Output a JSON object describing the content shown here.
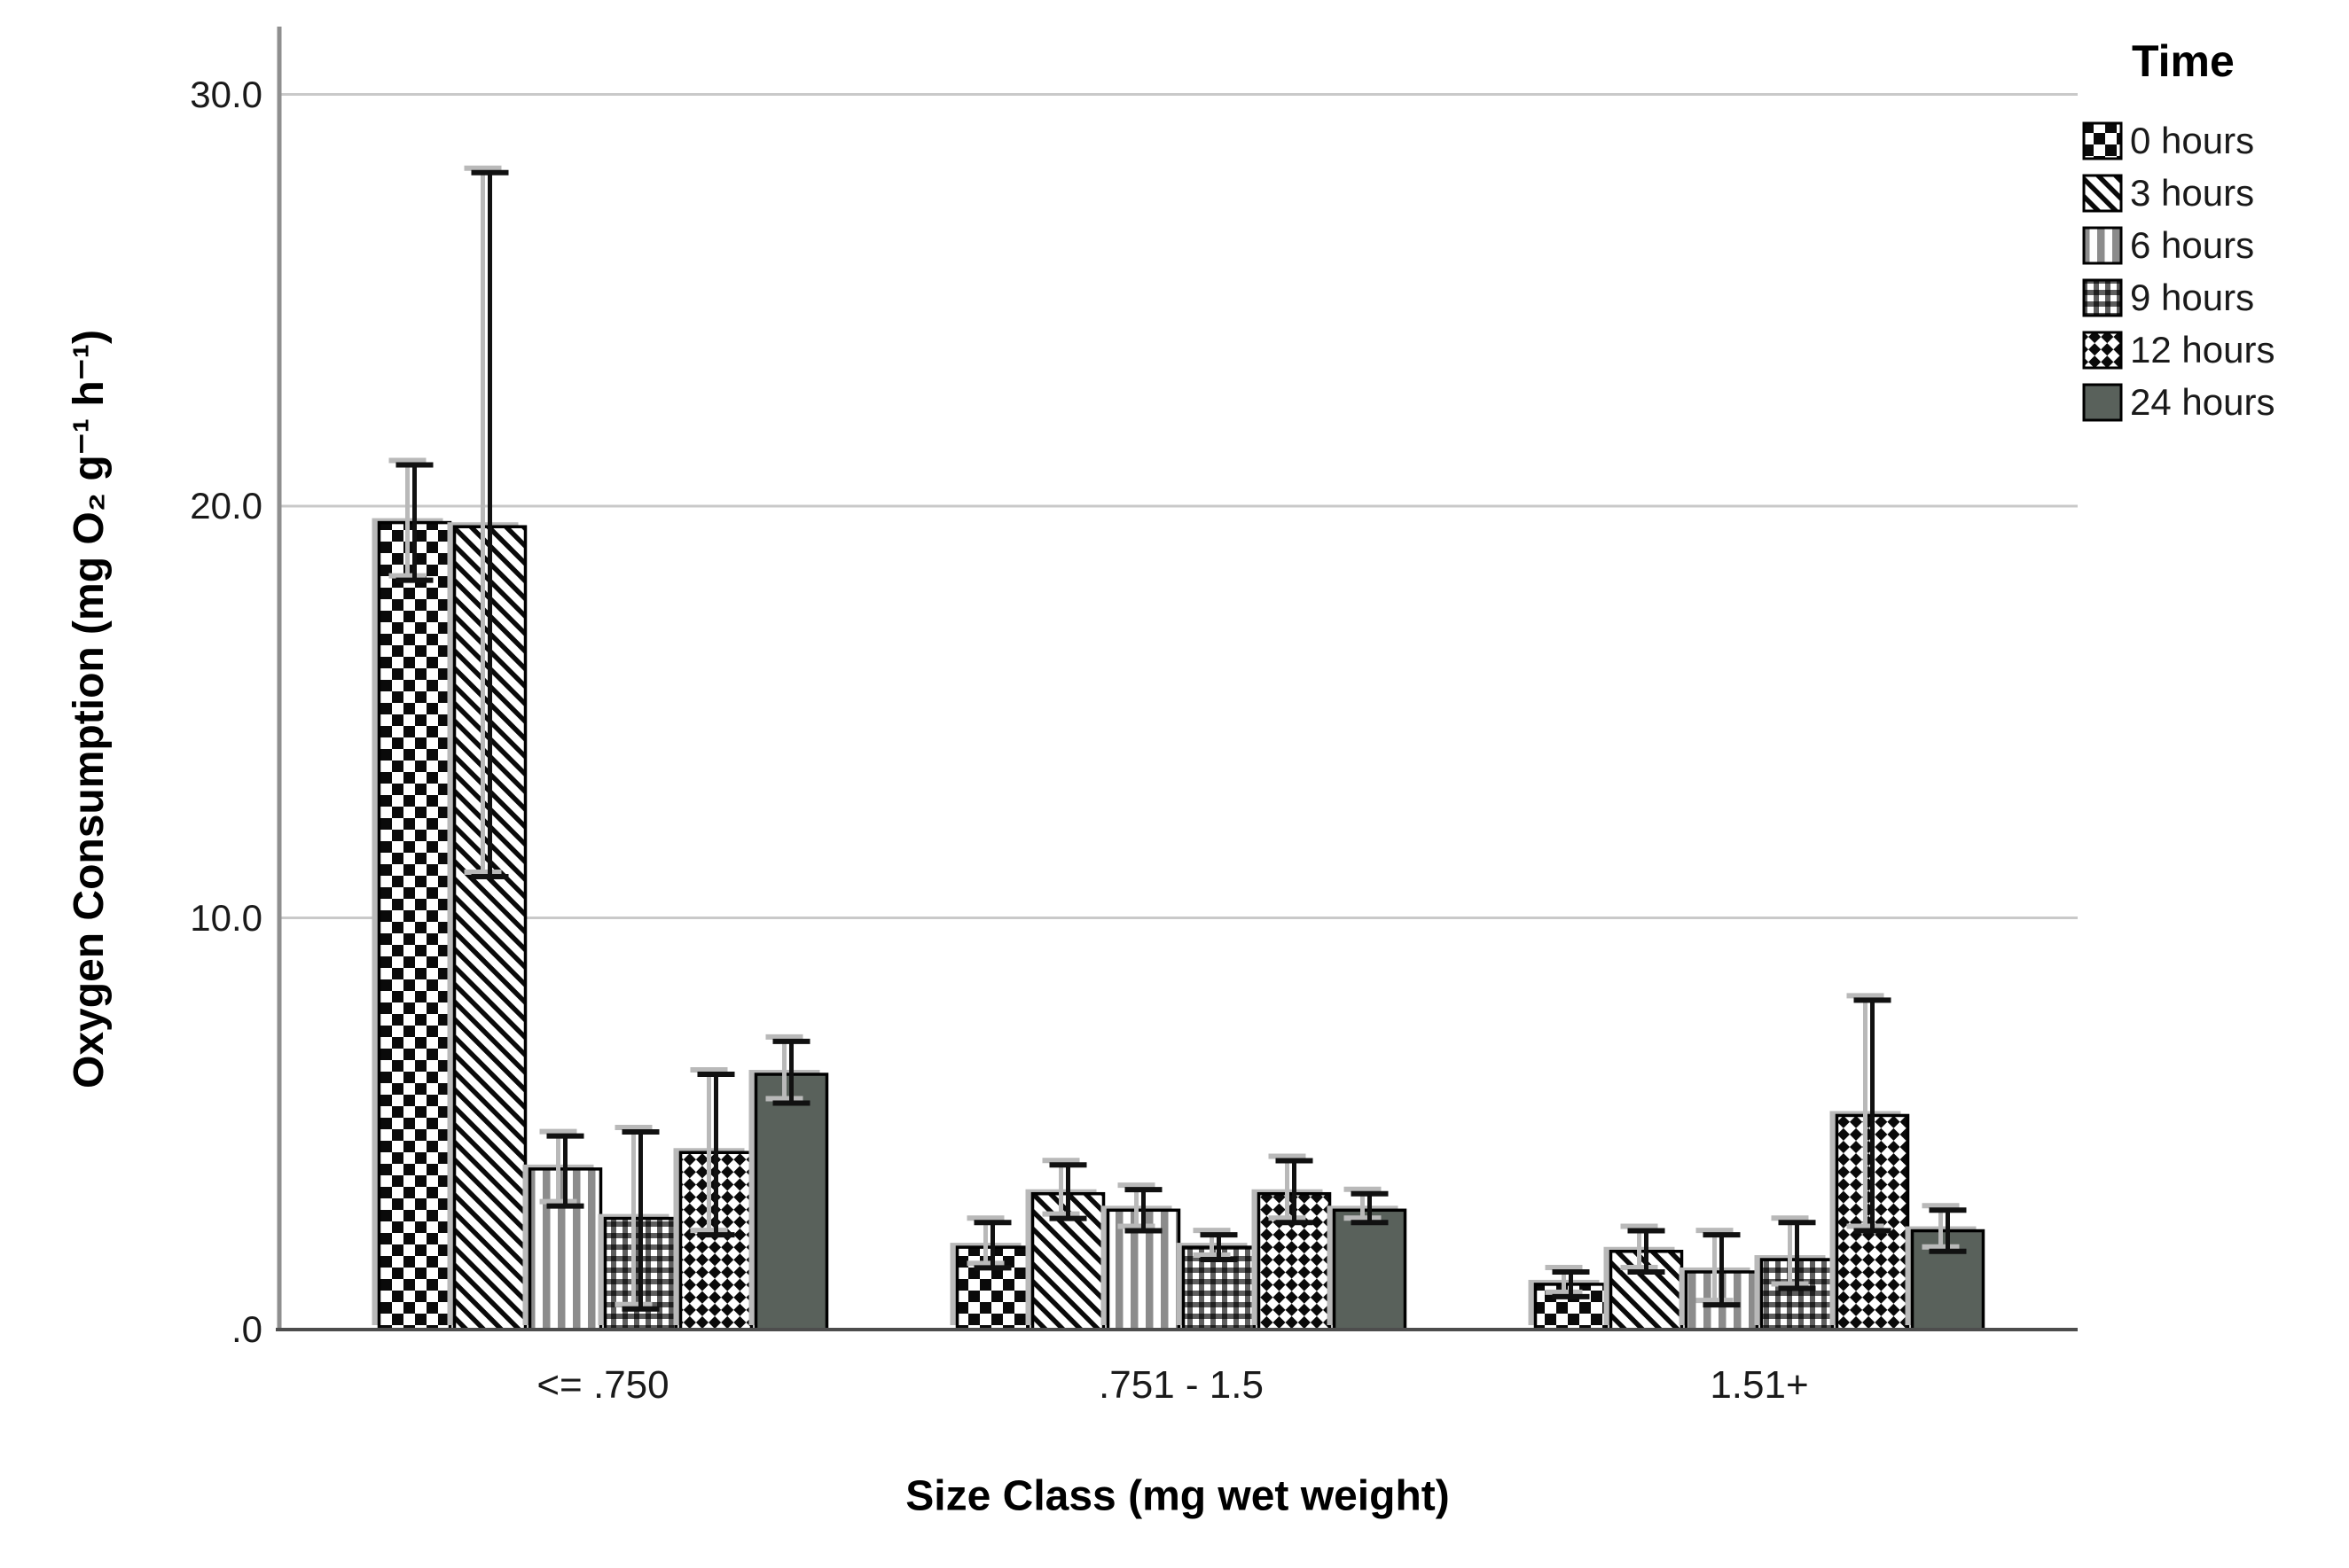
{
  "chart_data": {
    "type": "bar",
    "title": "",
    "xlabel": "Size Class (mg wet weight)",
    "ylabel": "Oxygen Consumption (mg O₂ g⁻¹ h⁻¹)",
    "legend_title": "Time",
    "legend_position": "top-right",
    "grid": "horizontal",
    "categories": [
      "<= .750",
      ".751 - 1.5",
      "1.51+"
    ],
    "y_ticks": {
      "values": [
        0,
        10,
        20,
        30
      ],
      "labels": [
        ".0",
        "10.0",
        "20.0",
        "30.0"
      ]
    },
    "ylim": [
      0,
      32
    ],
    "series": [
      {
        "name": "0 hours",
        "pattern": "checkerboard",
        "values": [
          19.6,
          2.0,
          1.1
        ],
        "error_low": [
          18.2,
          1.5,
          0.8
        ],
        "error_high": [
          21.0,
          2.6,
          1.4
        ]
      },
      {
        "name": "3 hours",
        "pattern": "diagonal-stripes",
        "values": [
          19.5,
          3.3,
          1.9
        ],
        "error_low": [
          11.0,
          2.7,
          1.4
        ],
        "error_high": [
          28.1,
          4.0,
          2.4
        ]
      },
      {
        "name": "6 hours",
        "pattern": "vertical-stripes",
        "values": [
          3.9,
          2.9,
          1.4
        ],
        "error_low": [
          3.0,
          2.4,
          0.6
        ],
        "error_high": [
          4.7,
          3.4,
          2.3
        ]
      },
      {
        "name": "9 hours",
        "pattern": "grid-check",
        "values": [
          2.7,
          2.0,
          1.7
        ],
        "error_low": [
          0.5,
          1.7,
          1.0
        ],
        "error_high": [
          4.8,
          2.3,
          2.6
        ]
      },
      {
        "name": "12 hours",
        "pattern": "diamond-check",
        "values": [
          4.3,
          3.3,
          5.2
        ],
        "error_low": [
          2.3,
          2.6,
          2.4
        ],
        "error_high": [
          6.2,
          4.1,
          8.0
        ]
      },
      {
        "name": "24 hours",
        "pattern": "solid",
        "values": [
          6.2,
          2.9,
          2.4
        ],
        "error_low": [
          5.5,
          2.6,
          1.9
        ],
        "error_high": [
          7.0,
          3.3,
          2.9
        ]
      }
    ],
    "colors": {
      "solid_bar": "#59615b",
      "pattern_black": "#0a0a0a",
      "stripe_gray": "#8c8c8c",
      "plaid_gray": "#5e5e5e",
      "plaid_dark": "#1f1f1f",
      "grid_line": "#c9c9c9",
      "x_axis": "#4d4d4d",
      "y_axis": "#8f8f8f",
      "shadow": "#b9b9b9",
      "error_bar": "#111111"
    }
  }
}
